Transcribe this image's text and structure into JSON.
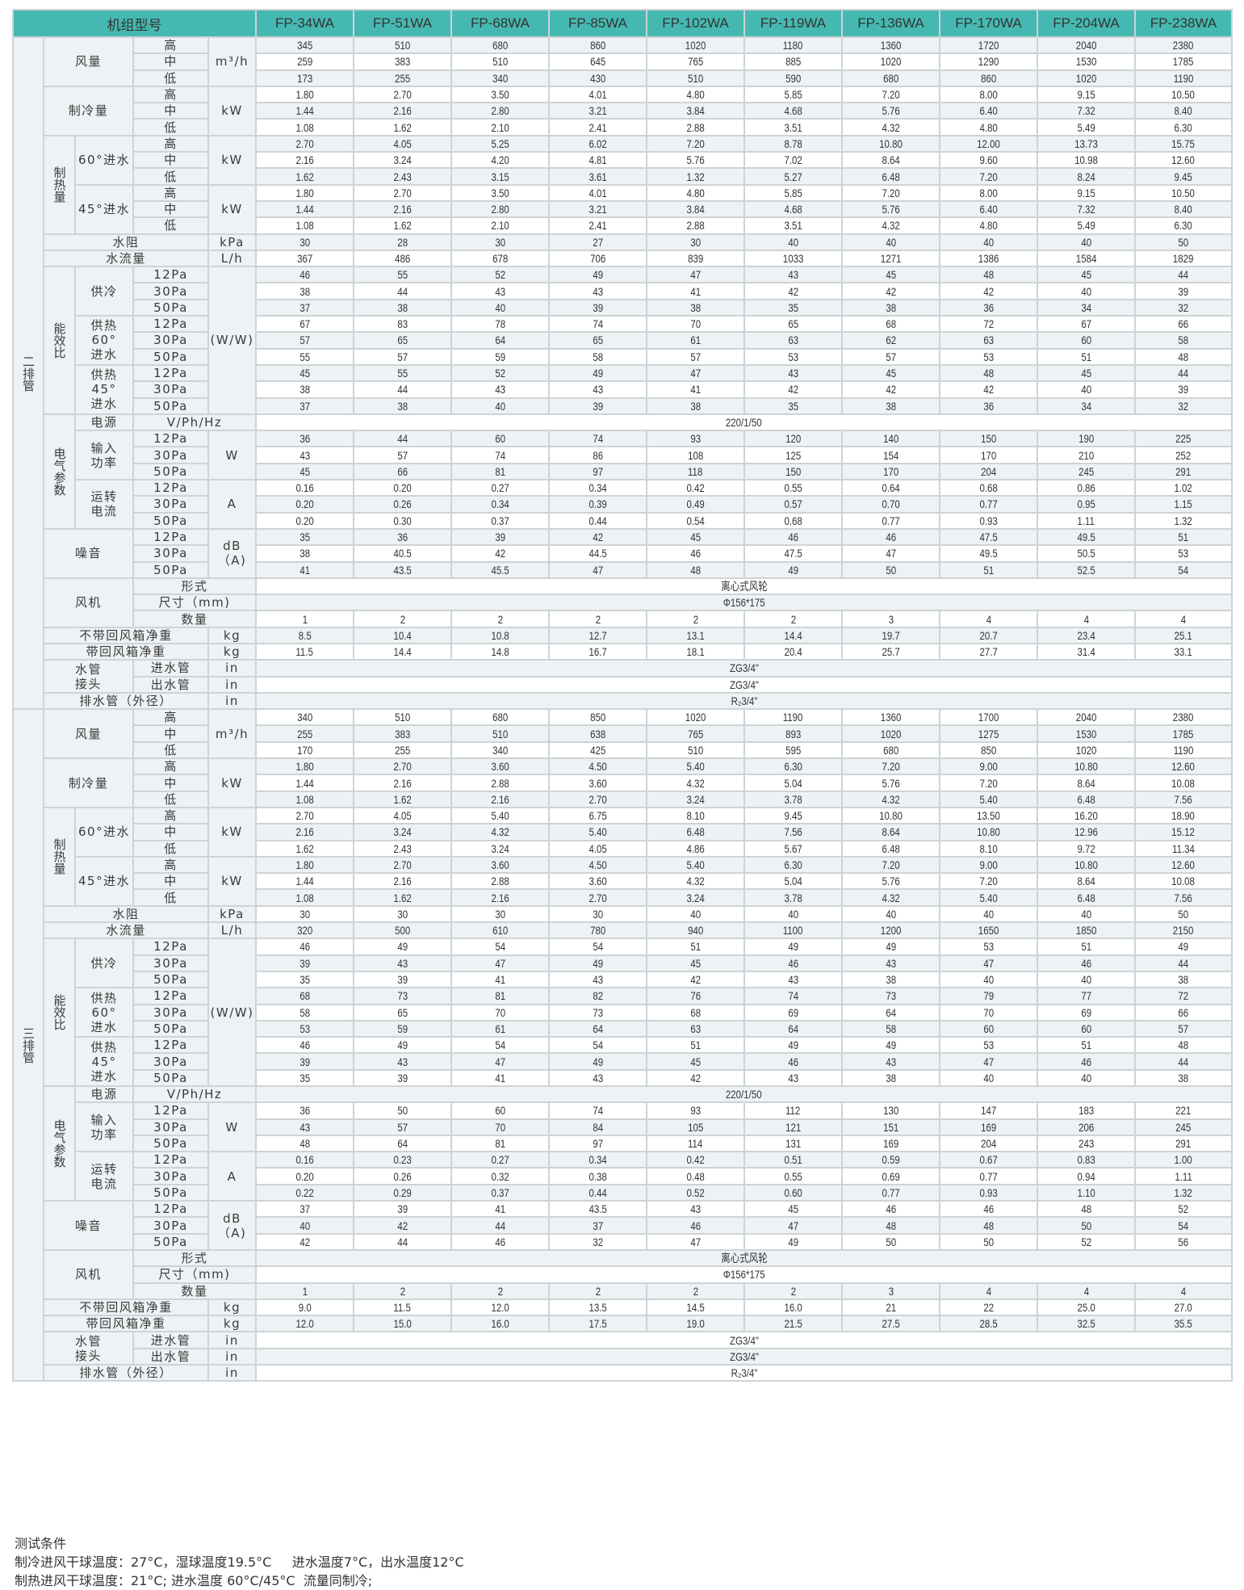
{
  "header": {
    "title": "机组型号",
    "models": [
      "FP-34WA",
      "FP-51WA",
      "FP-68WA",
      "FP-85WA",
      "FP-102WA",
      "FP-119WA",
      "FP-136WA",
      "FP-170WA",
      "FP-204WA",
      "FP-238WA"
    ]
  },
  "labels": {
    "airflow": "风量",
    "cooling": "制冷量",
    "heating": "制热量",
    "inlet60": "60°进水",
    "inlet45": "45°进水",
    "high": "高",
    "mid": "中",
    "low": "低",
    "water_resistance": "水阻",
    "water_flow": "水流量",
    "eer": "能效比",
    "eer_cool": "供冷",
    "eer_heat60": "供热\n60°\n进水",
    "eer_heat45": "供热\n45°\n进水",
    "p12": "12Pa",
    "p30": "30Pa",
    "p50": "50Pa",
    "electrical": "电气参数",
    "power_supply": "电源",
    "input_power": "输入\n功率",
    "running_current": "运转\n电流",
    "noise": "噪音",
    "fan": "风机",
    "fan_type": "形式",
    "fan_size": "尺寸（mm)",
    "fan_qty": "数量",
    "weight_no_box": "不带回风箱净重",
    "weight_box": "带回风箱净重",
    "water_pipe": "水管\n接头",
    "inlet_pipe": "进水管",
    "outlet_pipe": "出水管",
    "drain": "排水管（外径）"
  },
  "units": {
    "airflow": "m³/h",
    "kw": "kW",
    "kpa": "kPa",
    "lh": "L/h",
    "ww": "(W/W)",
    "vphhz": "V/Ph/Hz",
    "w": "W",
    "a": "A",
    "dba": "dB（A)",
    "kg": "kg",
    "in": "in"
  },
  "sections": [
    {
      "name": "二排管",
      "airflow": [
        [
          "345",
          "510",
          "680",
          "860",
          "1020",
          "1180",
          "1360",
          "1720",
          "2040",
          "2380"
        ],
        [
          "259",
          "383",
          "510",
          "645",
          "765",
          "885",
          "1020",
          "1290",
          "1530",
          "1785"
        ],
        [
          "173",
          "255",
          "340",
          "430",
          "510",
          "590",
          "680",
          "860",
          "1020",
          "1190"
        ]
      ],
      "cooling": [
        [
          "1.80",
          "2.70",
          "3.50",
          "4.01",
          "4.80",
          "5.85",
          "7.20",
          "8.00",
          "9.15",
          "10.50"
        ],
        [
          "1.44",
          "2.16",
          "2.80",
          "3.21",
          "3.84",
          "4.68",
          "5.76",
          "6.40",
          "7.32",
          "8.40"
        ],
        [
          "1.08",
          "1.62",
          "2.10",
          "2.41",
          "2.88",
          "3.51",
          "4.32",
          "4.80",
          "5.49",
          "6.30"
        ]
      ],
      "heat60": [
        [
          "2.70",
          "4.05",
          "5.25",
          "6.02",
          "7.20",
          "8.78",
          "10.80",
          "12.00",
          "13.73",
          "15.75"
        ],
        [
          "2.16",
          "3.24",
          "4.20",
          "4.81",
          "5.76",
          "7.02",
          "8.64",
          "9.60",
          "10.98",
          "12.60"
        ],
        [
          "1.62",
          "2.43",
          "3.15",
          "3.61",
          "1.32",
          "5.27",
          "6.48",
          "7.20",
          "8.24",
          "9.45"
        ]
      ],
      "heat45": [
        [
          "1.80",
          "2.70",
          "3.50",
          "4.01",
          "4.80",
          "5.85",
          "7.20",
          "8.00",
          "9.15",
          "10.50"
        ],
        [
          "1.44",
          "2.16",
          "2.80",
          "3.21",
          "3.84",
          "4.68",
          "5.76",
          "6.40",
          "7.32",
          "8.40"
        ],
        [
          "1.08",
          "1.62",
          "2.10",
          "2.41",
          "2.88",
          "3.51",
          "4.32",
          "4.80",
          "5.49",
          "6.30"
        ]
      ],
      "water_resistance": [
        "30",
        "28",
        "30",
        "27",
        "30",
        "40",
        "40",
        "40",
        "40",
        "50"
      ],
      "water_flow": [
        "367",
        "486",
        "678",
        "706",
        "839",
        "1033",
        "1271",
        "1386",
        "1584",
        "1829"
      ],
      "eer_cool": [
        [
          "46",
          "55",
          "52",
          "49",
          "47",
          "43",
          "45",
          "48",
          "45",
          "44"
        ],
        [
          "38",
          "44",
          "43",
          "43",
          "41",
          "42",
          "42",
          "42",
          "40",
          "39"
        ],
        [
          "37",
          "38",
          "40",
          "39",
          "38",
          "35",
          "38",
          "36",
          "34",
          "32"
        ]
      ],
      "eer_heat60": [
        [
          "67",
          "83",
          "78",
          "74",
          "70",
          "65",
          "68",
          "72",
          "67",
          "66"
        ],
        [
          "57",
          "65",
          "64",
          "65",
          "61",
          "63",
          "62",
          "63",
          "60",
          "58"
        ],
        [
          "55",
          "57",
          "59",
          "58",
          "57",
          "53",
          "57",
          "53",
          "51",
          "48"
        ]
      ],
      "eer_heat45": [
        [
          "45",
          "55",
          "52",
          "49",
          "47",
          "43",
          "45",
          "48",
          "45",
          "44"
        ],
        [
          "38",
          "44",
          "43",
          "43",
          "41",
          "42",
          "42",
          "42",
          "40",
          "39"
        ],
        [
          "37",
          "38",
          "40",
          "39",
          "38",
          "35",
          "38",
          "36",
          "34",
          "32"
        ]
      ],
      "power_supply": "220/1/50",
      "input_power": [
        [
          "36",
          "44",
          "60",
          "74",
          "93",
          "120",
          "140",
          "150",
          "190",
          "225"
        ],
        [
          "43",
          "57",
          "74",
          "86",
          "108",
          "125",
          "154",
          "170",
          "210",
          "252"
        ],
        [
          "45",
          "66",
          "81",
          "97",
          "118",
          "150",
          "170",
          "204",
          "245",
          "291"
        ]
      ],
      "current": [
        [
          "0.16",
          "0.20",
          "0.27",
          "0.34",
          "0.42",
          "0.55",
          "0.64",
          "0.68",
          "0.86",
          "1.02"
        ],
        [
          "0.20",
          "0.26",
          "0.34",
          "0.39",
          "0.49",
          "0.57",
          "0.70",
          "0.77",
          "0.95",
          "1.15"
        ],
        [
          "0.20",
          "0.30",
          "0.37",
          "0.44",
          "0.54",
          "0.68",
          "0.77",
          "0.93",
          "1.11",
          "1.32"
        ]
      ],
      "noise": [
        [
          "35",
          "36",
          "39",
          "42",
          "45",
          "46",
          "46",
          "47.5",
          "49.5",
          "51"
        ],
        [
          "38",
          "40.5",
          "42",
          "44.5",
          "46",
          "47.5",
          "47",
          "49.5",
          "50.5",
          "53"
        ],
        [
          "41",
          "43.5",
          "45.5",
          "47",
          "48",
          "49",
          "50",
          "51",
          "52.5",
          "54"
        ]
      ],
      "fan_type": "离心式风轮",
      "fan_size": "Φ156*175",
      "fan_qty": [
        "1",
        "2",
        "2",
        "2",
        "2",
        "2",
        "3",
        "4",
        "4",
        "4"
      ],
      "weight_no_box": [
        "8.5",
        "10.4",
        "10.8",
        "12.7",
        "13.1",
        "14.4",
        "19.7",
        "20.7",
        "23.4",
        "25.1"
      ],
      "weight_box": [
        "11.5",
        "14.4",
        "14.8",
        "16.7",
        "18.1",
        "20.4",
        "25.7",
        "27.7",
        "31.4",
        "33.1"
      ],
      "inlet_pipe": "ZG3/4\"",
      "outlet_pipe": "ZG3/4\"",
      "drain": "R₂3/4\""
    },
    {
      "name": "三排管",
      "airflow": [
        [
          "340",
          "510",
          "680",
          "850",
          "1020",
          "1190",
          "1360",
          "1700",
          "2040",
          "2380"
        ],
        [
          "255",
          "383",
          "510",
          "638",
          "765",
          "893",
          "1020",
          "1275",
          "1530",
          "1785"
        ],
        [
          "170",
          "255",
          "340",
          "425",
          "510",
          "595",
          "680",
          "850",
          "1020",
          "1190"
        ]
      ],
      "cooling": [
        [
          "1.80",
          "2.70",
          "3.60",
          "4.50",
          "5.40",
          "6.30",
          "7.20",
          "9.00",
          "10.80",
          "12.60"
        ],
        [
          "1.44",
          "2.16",
          "2.88",
          "3.60",
          "4.32",
          "5.04",
          "5.76",
          "7.20",
          "8.64",
          "10.08"
        ],
        [
          "1.08",
          "1.62",
          "2.16",
          "2.70",
          "3.24",
          "3.78",
          "4.32",
          "5.40",
          "6.48",
          "7.56"
        ]
      ],
      "heat60": [
        [
          "2.70",
          "4.05",
          "5.40",
          "6.75",
          "8.10",
          "9.45",
          "10.80",
          "13.50",
          "16.20",
          "18.90"
        ],
        [
          "2.16",
          "3.24",
          "4.32",
          "5.40",
          "6.48",
          "7.56",
          "8.64",
          "10.80",
          "12.96",
          "15.12"
        ],
        [
          "1.62",
          "2.43",
          "3.24",
          "4.05",
          "4.86",
          "5.67",
          "6.48",
          "8.10",
          "9.72",
          "11.34"
        ]
      ],
      "heat45": [
        [
          "1.80",
          "2.70",
          "3.60",
          "4.50",
          "5.40",
          "6.30",
          "7.20",
          "9.00",
          "10.80",
          "12.60"
        ],
        [
          "1.44",
          "2.16",
          "2.88",
          "3.60",
          "4.32",
          "5.04",
          "5.76",
          "7.20",
          "8.64",
          "10.08"
        ],
        [
          "1.08",
          "1.62",
          "2.16",
          "2.70",
          "3.24",
          "3.78",
          "4.32",
          "5.40",
          "6.48",
          "7.56"
        ]
      ],
      "water_resistance": [
        "30",
        "30",
        "30",
        "30",
        "40",
        "40",
        "40",
        "40",
        "40",
        "50"
      ],
      "water_flow": [
        "320",
        "500",
        "610",
        "780",
        "940",
        "1100",
        "1200",
        "1650",
        "1850",
        "2150"
      ],
      "eer_cool": [
        [
          "46",
          "49",
          "54",
          "54",
          "51",
          "49",
          "49",
          "53",
          "51",
          "49"
        ],
        [
          "39",
          "43",
          "47",
          "49",
          "45",
          "46",
          "43",
          "47",
          "46",
          "44"
        ],
        [
          "35",
          "39",
          "41",
          "43",
          "42",
          "43",
          "38",
          "40",
          "40",
          "38"
        ]
      ],
      "eer_heat60": [
        [
          "68",
          "73",
          "81",
          "82",
          "76",
          "74",
          "73",
          "79",
          "77",
          "72"
        ],
        [
          "58",
          "65",
          "70",
          "73",
          "68",
          "69",
          "64",
          "70",
          "69",
          "66"
        ],
        [
          "53",
          "59",
          "61",
          "64",
          "63",
          "64",
          "58",
          "60",
          "60",
          "57"
        ]
      ],
      "eer_heat45": [
        [
          "46",
          "49",
          "54",
          "54",
          "51",
          "49",
          "49",
          "53",
          "51",
          "48"
        ],
        [
          "39",
          "43",
          "47",
          "49",
          "45",
          "46",
          "43",
          "47",
          "46",
          "44"
        ],
        [
          "35",
          "39",
          "41",
          "43",
          "42",
          "43",
          "38",
          "40",
          "40",
          "38"
        ]
      ],
      "power_supply": "220/1/50",
      "input_power": [
        [
          "36",
          "50",
          "60",
          "74",
          "93",
          "112",
          "130",
          "147",
          "183",
          "221"
        ],
        [
          "43",
          "57",
          "70",
          "84",
          "105",
          "121",
          "151",
          "169",
          "206",
          "245"
        ],
        [
          "48",
          "64",
          "81",
          "97",
          "114",
          "131",
          "169",
          "204",
          "243",
          "291"
        ]
      ],
      "current": [
        [
          "0.16",
          "0.23",
          "0.27",
          "0.34",
          "0.42",
          "0.51",
          "0.59",
          "0.67",
          "0.83",
          "1.00"
        ],
        [
          "0.20",
          "0.26",
          "0.32",
          "0.38",
          "0.48",
          "0.55",
          "0.69",
          "0.77",
          "0.94",
          "1.11"
        ],
        [
          "0.22",
          "0.29",
          "0.37",
          "0.44",
          "0.52",
          "0.60",
          "0.77",
          "0.93",
          "1.10",
          "1.32"
        ]
      ],
      "noise": [
        [
          "37",
          "39",
          "41",
          "43.5",
          "43",
          "45",
          "46",
          "46",
          "48",
          "52"
        ],
        [
          "40",
          "42",
          "44",
          "37",
          "46",
          "47",
          "48",
          "48",
          "50",
          "54"
        ],
        [
          "42",
          "44",
          "46",
          "32",
          "47",
          "49",
          "50",
          "50",
          "52",
          "56"
        ]
      ],
      "fan_type": "离心式风轮",
      "fan_size": "Φ156*175",
      "fan_qty": [
        "1",
        "2",
        "2",
        "2",
        "2",
        "2",
        "3",
        "4",
        "4",
        "4"
      ],
      "weight_no_box": [
        "9.0",
        "11.5",
        "12.0",
        "13.5",
        "14.5",
        "16.0",
        "21",
        "22",
        "25.0",
        "27.0"
      ],
      "weight_box": [
        "12.0",
        "15.0",
        "16.0",
        "17.5",
        "19.0",
        "21.5",
        "27.5",
        "28.5",
        "32.5",
        "35.5"
      ],
      "inlet_pipe": "ZG3/4\"",
      "outlet_pipe": "ZG3/4\"",
      "drain": "R₂3/4\""
    }
  ],
  "notes": {
    "title": "测试条件",
    "lines": [
      "制冷进风干球温度：27°C，湿球温度19.5°C     进水温度7°C，出水温度12°C",
      "制热进风干球温度：21°C; 进水温度 60°C/45°C  流量同制冷;"
    ]
  },
  "colors": {
    "header": "#45b9b1",
    "stripe": "#edf2f4",
    "label_bg": "#eef2f4",
    "border": "#cdd3d6"
  }
}
